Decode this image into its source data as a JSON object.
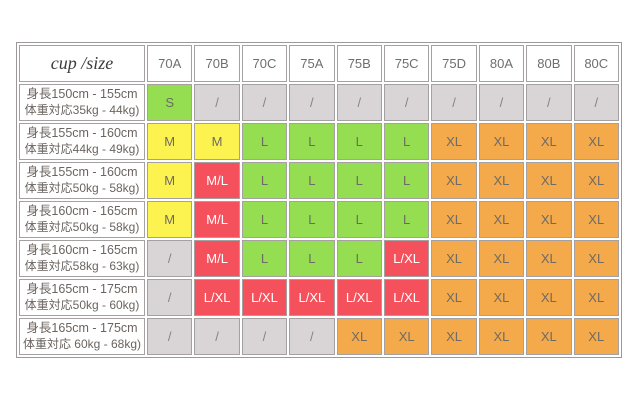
{
  "colors": {
    "green": "#95DE51",
    "yellow": "#FCF351",
    "red": "#F4515C",
    "orange": "#F4A94A",
    "gray": "#D9D5D6",
    "cell_text": "#6F6B64",
    "slash_text": "#87837F",
    "cell_text_on_red": "#FFFFFF",
    "header_text": "#716D6E",
    "label_text": "#6B6460",
    "grid_border": "#A5A1A2"
  },
  "table": {
    "corner_header": "cup /size",
    "columns": [
      "70A",
      "70B",
      "70C",
      "75A",
      "75B",
      "75C",
      "75D",
      "80A",
      "80B",
      "80C"
    ],
    "rows": [
      {
        "height": "身長150cm - 155cm",
        "weight": "体重対応35kg - 44kg)",
        "cells": [
          {
            "v": "S",
            "c": "green"
          },
          {
            "v": "/",
            "c": "gray"
          },
          {
            "v": "/",
            "c": "gray"
          },
          {
            "v": "/",
            "c": "gray"
          },
          {
            "v": "/",
            "c": "gray"
          },
          {
            "v": "/",
            "c": "gray"
          },
          {
            "v": "/",
            "c": "gray"
          },
          {
            "v": "/",
            "c": "gray"
          },
          {
            "v": "/",
            "c": "gray"
          },
          {
            "v": "/",
            "c": "gray"
          }
        ]
      },
      {
        "height": "身長155cm - 160cm",
        "weight": "体重対応44kg - 49kg)",
        "cells": [
          {
            "v": "M",
            "c": "yellow"
          },
          {
            "v": "M",
            "c": "yellow"
          },
          {
            "v": "L",
            "c": "green"
          },
          {
            "v": "L",
            "c": "green"
          },
          {
            "v": "L",
            "c": "green"
          },
          {
            "v": "L",
            "c": "green"
          },
          {
            "v": "XL",
            "c": "orange"
          },
          {
            "v": "XL",
            "c": "orange"
          },
          {
            "v": "XL",
            "c": "orange"
          },
          {
            "v": "XL",
            "c": "orange"
          }
        ]
      },
      {
        "height": "身長155cm - 160cm",
        "weight": "体重対応50kg - 58kg)",
        "cells": [
          {
            "v": "M",
            "c": "yellow"
          },
          {
            "v": "M/L",
            "c": "red"
          },
          {
            "v": "L",
            "c": "green"
          },
          {
            "v": "L",
            "c": "green"
          },
          {
            "v": "L",
            "c": "green"
          },
          {
            "v": "L",
            "c": "green"
          },
          {
            "v": "XL",
            "c": "orange"
          },
          {
            "v": "XL",
            "c": "orange"
          },
          {
            "v": "XL",
            "c": "orange"
          },
          {
            "v": "XL",
            "c": "orange"
          }
        ]
      },
      {
        "height": "身長160cm - 165cm",
        "weight": "体重対応50kg - 58kg)",
        "cells": [
          {
            "v": "M",
            "c": "yellow"
          },
          {
            "v": "M/L",
            "c": "red"
          },
          {
            "v": "L",
            "c": "green"
          },
          {
            "v": "L",
            "c": "green"
          },
          {
            "v": "L",
            "c": "green"
          },
          {
            "v": "L",
            "c": "green"
          },
          {
            "v": "XL",
            "c": "orange"
          },
          {
            "v": "XL",
            "c": "orange"
          },
          {
            "v": "XL",
            "c": "orange"
          },
          {
            "v": "XL",
            "c": "orange"
          }
        ]
      },
      {
        "height": "身長160cm - 165cm",
        "weight": "体重対応58kg - 63kg)",
        "cells": [
          {
            "v": "/",
            "c": "gray"
          },
          {
            "v": "M/L",
            "c": "red"
          },
          {
            "v": "L",
            "c": "green"
          },
          {
            "v": "L",
            "c": "green"
          },
          {
            "v": "L",
            "c": "green"
          },
          {
            "v": "L/XL",
            "c": "red"
          },
          {
            "v": "XL",
            "c": "orange"
          },
          {
            "v": "XL",
            "c": "orange"
          },
          {
            "v": "XL",
            "c": "orange"
          },
          {
            "v": "XL",
            "c": "orange"
          }
        ]
      },
      {
        "height": "身長165cm - 175cm",
        "weight": "体重対応50kg - 60kg)",
        "cells": [
          {
            "v": "/",
            "c": "gray"
          },
          {
            "v": "L/XL",
            "c": "red"
          },
          {
            "v": "L/XL",
            "c": "red"
          },
          {
            "v": "L/XL",
            "c": "red"
          },
          {
            "v": "L/XL",
            "c": "red"
          },
          {
            "v": "L/XL",
            "c": "red"
          },
          {
            "v": "XL",
            "c": "orange"
          },
          {
            "v": "XL",
            "c": "orange"
          },
          {
            "v": "XL",
            "c": "orange"
          },
          {
            "v": "XL",
            "c": "orange"
          }
        ]
      },
      {
        "height": "身長165cm - 175cm",
        "weight": "体重対応 60kg - 68kg)",
        "cells": [
          {
            "v": "/",
            "c": "gray"
          },
          {
            "v": "/",
            "c": "gray"
          },
          {
            "v": "/",
            "c": "gray"
          },
          {
            "v": "/",
            "c": "gray"
          },
          {
            "v": "XL",
            "c": "orange"
          },
          {
            "v": "XL",
            "c": "orange"
          },
          {
            "v": "XL",
            "c": "orange"
          },
          {
            "v": "XL",
            "c": "orange"
          },
          {
            "v": "XL",
            "c": "orange"
          },
          {
            "v": "XL",
            "c": "orange"
          }
        ]
      }
    ]
  },
  "chart_data": {
    "type": "table",
    "title": "cup /size",
    "columns": [
      "cup /size",
      "70A",
      "70B",
      "70C",
      "75A",
      "75B",
      "75C",
      "75D",
      "80A",
      "80B",
      "80C"
    ],
    "rows": [
      {
        "label": "身長150cm - 155cm 体重対応35kg - 44kg)",
        "values": [
          "S",
          "/",
          "/",
          "/",
          "/",
          "/",
          "/",
          "/",
          "/",
          "/"
        ]
      },
      {
        "label": "身長155cm - 160cm 体重対応44kg - 49kg)",
        "values": [
          "M",
          "M",
          "L",
          "L",
          "L",
          "L",
          "XL",
          "XL",
          "XL",
          "XL"
        ]
      },
      {
        "label": "身長155cm - 160cm 体重対応50kg - 58kg)",
        "values": [
          "M",
          "M/L",
          "L",
          "L",
          "L",
          "L",
          "XL",
          "XL",
          "XL",
          "XL"
        ]
      },
      {
        "label": "身長160cm - 165cm 体重対応50kg - 58kg)",
        "values": [
          "M",
          "M/L",
          "L",
          "L",
          "L",
          "L",
          "XL",
          "XL",
          "XL",
          "XL"
        ]
      },
      {
        "label": "身長160cm - 165cm 体重対応58kg - 63kg)",
        "values": [
          "/",
          "M/L",
          "L",
          "L",
          "L",
          "L/XL",
          "XL",
          "XL",
          "XL",
          "XL"
        ]
      },
      {
        "label": "身長165cm - 175cm 体重対応50kg - 60kg)",
        "values": [
          "/",
          "L/XL",
          "L/XL",
          "L/XL",
          "L/XL",
          "L/XL",
          "XL",
          "XL",
          "XL",
          "XL"
        ]
      },
      {
        "label": "身長165cm - 175cm 体重対応 60kg - 68kg)",
        "values": [
          "/",
          "/",
          "/",
          "/",
          "XL",
          "XL",
          "XL",
          "XL",
          "XL",
          "XL"
        ]
      }
    ],
    "legend_colors": {
      "S": "green",
      "M": "yellow",
      "L": "green",
      "M/L": "red",
      "L/XL": "red",
      "XL": "orange",
      "/": "gray"
    }
  }
}
